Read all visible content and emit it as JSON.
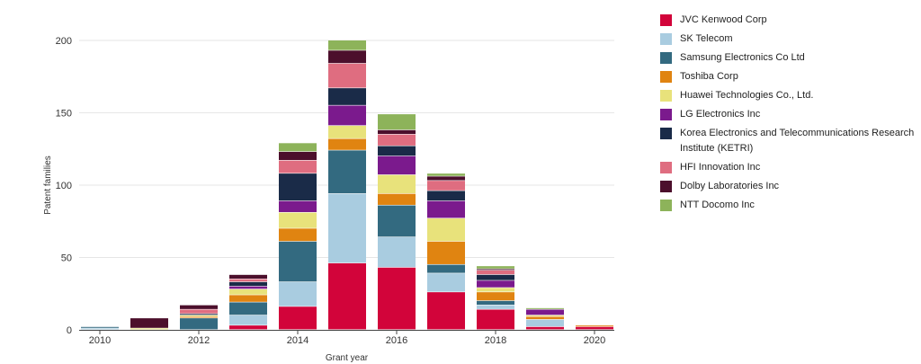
{
  "chart_data": {
    "type": "bar",
    "stacked": true,
    "x": [
      2010,
      2011,
      2012,
      2013,
      2014,
      2015,
      2016,
      2017,
      2018,
      2019,
      2020
    ],
    "xlabel": "Grant year",
    "ylabel": "Patent families",
    "ylim": [
      0,
      200
    ],
    "yticks": [
      0,
      50,
      100,
      150,
      200
    ],
    "xticks": [
      2010,
      2012,
      2014,
      2016,
      2018,
      2020
    ],
    "grid": true,
    "legend_position": "right",
    "series": [
      {
        "name": "JVC Kenwood Corp",
        "color": "#d2043a",
        "values": [
          0,
          0,
          0,
          3,
          16,
          46,
          43,
          26,
          14,
          2,
          2
        ]
      },
      {
        "name": "SK Telecom",
        "color": "#a9cce0",
        "values": [
          1,
          0,
          0,
          7,
          17,
          48,
          21,
          13,
          3,
          5,
          0
        ]
      },
      {
        "name": "Samsung Electronics Co Ltd",
        "color": "#336a80",
        "values": [
          1,
          0,
          8,
          9,
          28,
          30,
          22,
          6,
          3,
          0,
          0
        ]
      },
      {
        "name": "Toshiba Corp",
        "color": "#e08411",
        "values": [
          0,
          0,
          1,
          5,
          9,
          8,
          8,
          16,
          6,
          2,
          1
        ]
      },
      {
        "name": "Huawei Technologies Co., Ltd.",
        "color": "#e8e27b",
        "values": [
          0,
          1,
          1,
          4,
          11,
          9,
          13,
          16,
          3,
          1,
          0
        ]
      },
      {
        "name": "LG Electronics Inc",
        "color": "#7b1a8d",
        "values": [
          0,
          0,
          0,
          2,
          8,
          14,
          13,
          12,
          5,
          4,
          0
        ]
      },
      {
        "name": "Korea Electronics and Telecommunications Research Institute (KETRI)",
        "color": "#1a2b48",
        "values": [
          0,
          0,
          1,
          3,
          19,
          12,
          7,
          7,
          4,
          0,
          0
        ]
      },
      {
        "name": "HFI Innovation Inc",
        "color": "#df6d80",
        "values": [
          0,
          0,
          3,
          2,
          9,
          17,
          8,
          7,
          3,
          0,
          0
        ]
      },
      {
        "name": "Dolby Laboratories Inc",
        "color": "#4c0f2c",
        "values": [
          0,
          7,
          3,
          3,
          6,
          9,
          3,
          3,
          1,
          0,
          0
        ]
      },
      {
        "name": "NTT Docomo Inc",
        "color": "#8db35a",
        "values": [
          0,
          0,
          0,
          0,
          6,
          7,
          11,
          2,
          2,
          1,
          0
        ]
      }
    ]
  }
}
